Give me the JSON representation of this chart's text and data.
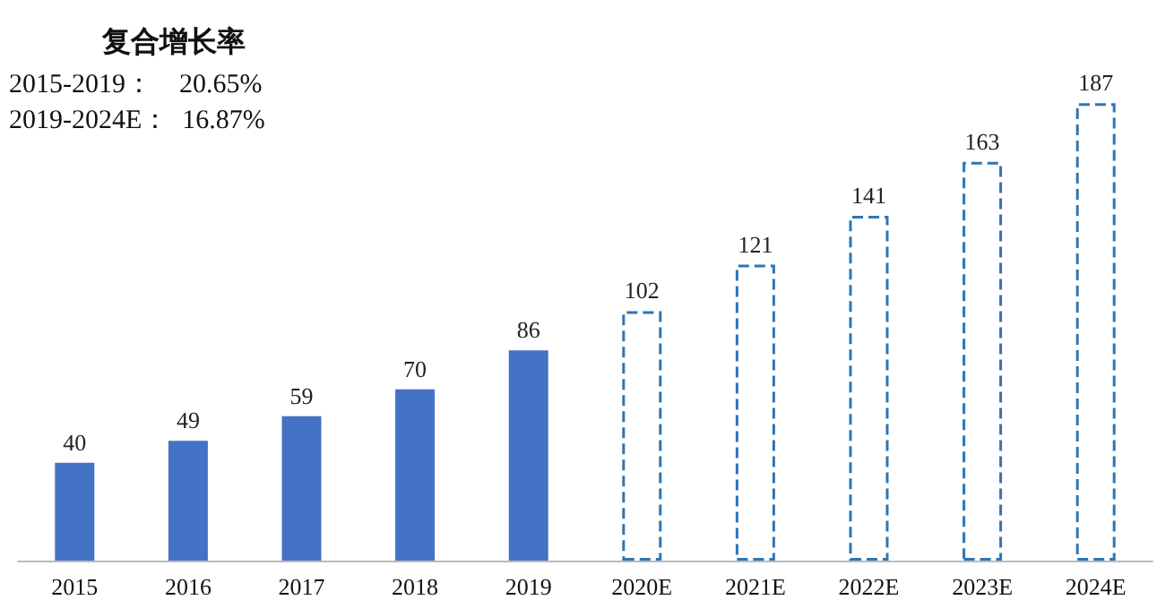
{
  "chart_data": {
    "type": "bar",
    "title": "复合增长率",
    "annotations": [
      "2015-2019：    20.65%",
      "2019-2024E：  16.87%"
    ],
    "categories": [
      "2015",
      "2016",
      "2017",
      "2018",
      "2019",
      "2020E",
      "2021E",
      "2022E",
      "2023E",
      "2024E"
    ],
    "series": [
      {
        "color": "#4472c4",
        "values": [
          40,
          49,
          59,
          70,
          86,
          null,
          null,
          null,
          null,
          null
        ]
      },
      {
        "color": "#2e75b6",
        "line_style": "dashed",
        "values": [
          null,
          null,
          null,
          null,
          null,
          102,
          121,
          141,
          163,
          187
        ]
      }
    ],
    "data_labels": true
  }
}
